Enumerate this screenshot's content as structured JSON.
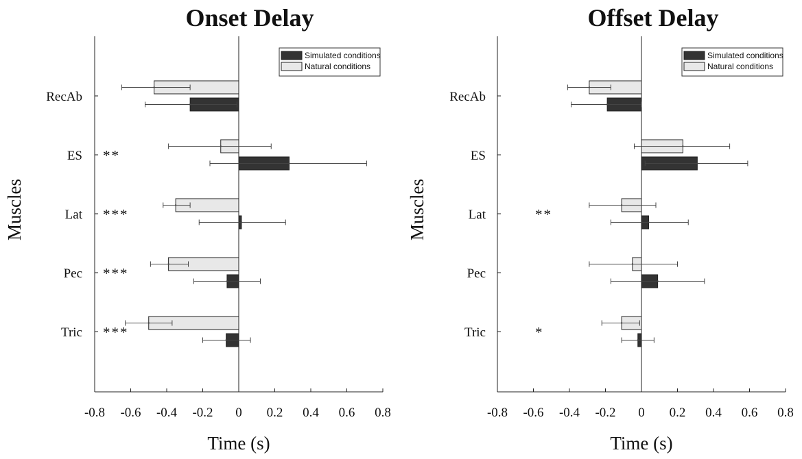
{
  "chart_data": [
    {
      "type": "bar",
      "orientation": "horizontal",
      "title": "Onset Delay",
      "xlabel": "Time (s)",
      "ylabel": "Muscles",
      "xlim": [
        -0.8,
        0.8
      ],
      "xticks": [
        "-0.8",
        "-0.6",
        "-0.4",
        "-0.2",
        "0",
        "0.2",
        "0.4",
        "0.6",
        "0.8"
      ],
      "categories": [
        "RecAb",
        "ES",
        "Lat",
        "Pec",
        "Tric"
      ],
      "significance": [
        "",
        "**",
        "***",
        "***",
        "***"
      ],
      "legend_position": "top-right",
      "grid": false,
      "series": [
        {
          "name": "Simulated conditions",
          "color": "#333333",
          "values": [
            -0.27,
            0.28,
            0.015,
            -0.065,
            -0.07
          ],
          "error_low": [
            -0.52,
            -0.16,
            -0.22,
            -0.25,
            -0.2
          ],
          "error_high": [
            -0.01,
            0.71,
            0.26,
            0.12,
            0.065
          ]
        },
        {
          "name": "Natural conditions",
          "color": "#e8e8e8",
          "values": [
            -0.47,
            -0.1,
            -0.35,
            -0.39,
            -0.5
          ],
          "error_low": [
            -0.65,
            -0.39,
            -0.42,
            -0.49,
            -0.63
          ],
          "error_high": [
            -0.27,
            0.18,
            -0.27,
            -0.28,
            -0.37
          ]
        }
      ]
    },
    {
      "type": "bar",
      "orientation": "horizontal",
      "title": "Offset Delay",
      "xlabel": "Time (s)",
      "ylabel": "Muscles",
      "xlim": [
        -0.8,
        0.8
      ],
      "xticks": [
        "-0.8",
        "-0.6",
        "-0.4",
        "-0.2",
        "0",
        "0.2",
        "0.4",
        "0.6",
        "0.8"
      ],
      "categories": [
        "RecAb",
        "ES",
        "Lat",
        "Pec",
        "Tric"
      ],
      "significance": [
        "",
        "",
        "**",
        "",
        "*"
      ],
      "legend_position": "top-right",
      "grid": false,
      "series": [
        {
          "name": "Simulated conditions",
          "color": "#333333",
          "values": [
            -0.19,
            0.31,
            0.04,
            0.09,
            -0.02
          ],
          "error_low": [
            -0.39,
            0.02,
            -0.17,
            -0.17,
            -0.11
          ],
          "error_high": [
            0.0,
            0.59,
            0.26,
            0.35,
            0.07
          ]
        },
        {
          "name": "Natural conditions",
          "color": "#e8e8e8",
          "values": [
            -0.29,
            0.23,
            -0.11,
            -0.05,
            -0.11
          ],
          "error_low": [
            -0.41,
            -0.04,
            -0.29,
            -0.29,
            -0.22
          ],
          "error_high": [
            -0.17,
            0.49,
            0.08,
            0.2,
            -0.01
          ]
        }
      ]
    }
  ]
}
